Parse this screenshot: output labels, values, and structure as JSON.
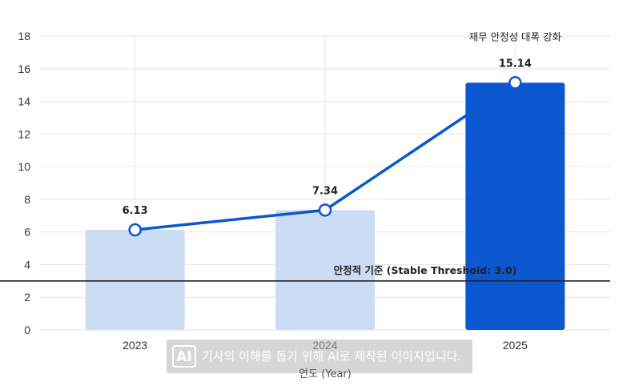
{
  "chart_data": {
    "type": "bar",
    "categories": [
      "2023",
      "2024",
      "2025"
    ],
    "values": [
      6.13,
      7.34,
      15.14
    ],
    "value_labels": [
      "6.13",
      "7.34",
      "15.14"
    ],
    "line_overlay": true,
    "highlight_category": "2025",
    "xlabel": "연도 (Year)",
    "ylabel": "",
    "ylim": [
      0,
      18
    ],
    "yticks": [
      0,
      2,
      4,
      6,
      8,
      10,
      12,
      14,
      16,
      18
    ],
    "grid": true,
    "threshold": {
      "value": 3.0,
      "label": "안정적 기준 (Stable Threshold: 3.0)"
    },
    "annotation": {
      "category": "2025",
      "text": "재무 안정성 대폭 강화"
    },
    "colors": {
      "bar_normal": "#ccdcf4",
      "bar_highlight": "#0b57d0",
      "line": "#0b57d0",
      "threshold": "#222222",
      "grid": "#e6e6e6"
    }
  },
  "watermark": {
    "badge": "AI",
    "text": "기사의 이해를 돕기 위해 AI로 제작된 이미지입니다."
  }
}
